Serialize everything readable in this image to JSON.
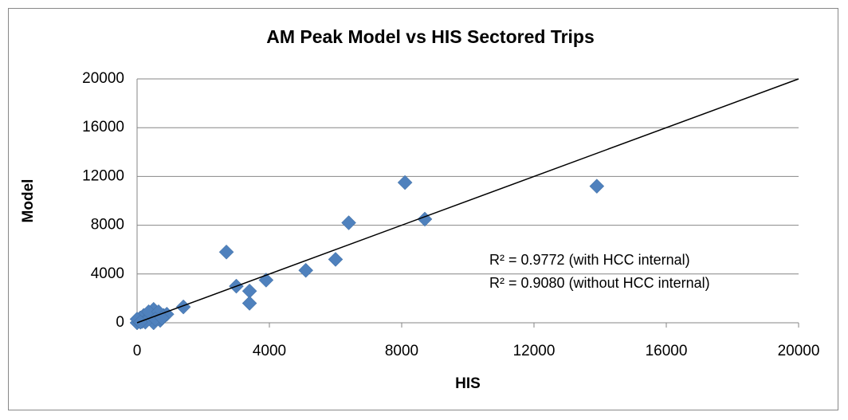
{
  "chart_data": {
    "type": "scatter",
    "title": "AM Peak Model vs HIS Sectored Trips",
    "x_label": "HIS",
    "y_label": "Model",
    "annotations": [
      "R² = 0.9772 (with HCC internal)",
      "R² = 0.9080 (without HCC internal)"
    ],
    "series": [
      {
        "color": "#4f81bd",
        "x": [
          13900,
          8100,
          8700,
          6400,
          6000,
          5100,
          2700,
          3000,
          3400,
          3900,
          3400,
          1400,
          0,
          50,
          100,
          150,
          200,
          300,
          400,
          500,
          600,
          700,
          800,
          900,
          500,
          250,
          0,
          100,
          350,
          650,
          550,
          750
        ],
        "values": [
          11200,
          11500,
          8500,
          8200,
          5200,
          4300,
          5800,
          3000,
          2600,
          3500,
          1600,
          1300,
          0,
          200,
          400,
          100,
          600,
          300,
          800,
          1100,
          500,
          200,
          600,
          700,
          0,
          50,
          300,
          50,
          900,
          900,
          300,
          400
        ]
      }
    ],
    "diagonal": {
      "x": [
        0,
        20000
      ],
      "y": [
        0,
        20000
      ]
    },
    "xlim": [
      0,
      20000
    ],
    "ylim": [
      0,
      20000
    ],
    "xticks": [
      0,
      4000,
      8000,
      12000,
      16000,
      20000
    ],
    "yticks": [
      0,
      4000,
      8000,
      12000,
      16000,
      20000
    ],
    "grid": true
  }
}
